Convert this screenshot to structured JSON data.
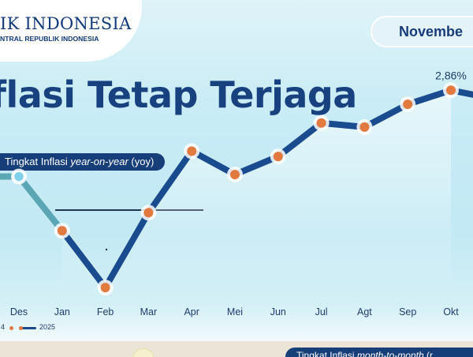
{
  "header": {
    "logo_main": "IK INDONESIA",
    "logo_sub": "NTRAL REPUBLIK INDONESIA",
    "date": "Novembe"
  },
  "title": "flasi Tetap Terjaga",
  "subtitle": {
    "prefix": "Tingkat Inflasi ",
    "italic": "year-on-year",
    "suffix": " (yoy)"
  },
  "legend": {
    "prev_year_label": "4",
    "curr_year_label": "2025"
  },
  "footer": {
    "prefix": "Tingkat Inflasi ",
    "italic": "month-to-month",
    "suffix": " (r"
  },
  "colors": {
    "line_2025": "#1a4b8e",
    "line_2024": "#5aa6b4",
    "marker_2025": "#e2793f",
    "marker_2024": "#7fd0ea",
    "title": "#17427f"
  },
  "chart_data": {
    "type": "line",
    "categories": [
      "Des",
      "Jan",
      "Feb",
      "Mar",
      "Apr",
      "Mei",
      "Jun",
      "Jul",
      "Agt",
      "Sep",
      "Okt"
    ],
    "series": [
      {
        "name": "4",
        "x": [
          "Des"
        ],
        "values": [
          1.57
        ]
      },
      {
        "name": "2025",
        "x": [
          "Jan",
          "Feb",
          "Mar",
          "Apr",
          "Mei",
          "Jun",
          "Jul",
          "Agt",
          "Sep",
          "Okt"
        ],
        "values": [
          0.76,
          -0.09,
          1.03,
          1.95,
          1.6,
          1.87,
          2.37,
          2.31,
          2.65,
          2.86
        ]
      }
    ],
    "annotations": [
      {
        "x": "Okt",
        "label": "2,86%"
      }
    ],
    "ylim": [
      -0.5,
      3.5
    ],
    "grid": false,
    "legend_position": "bottom-left"
  }
}
